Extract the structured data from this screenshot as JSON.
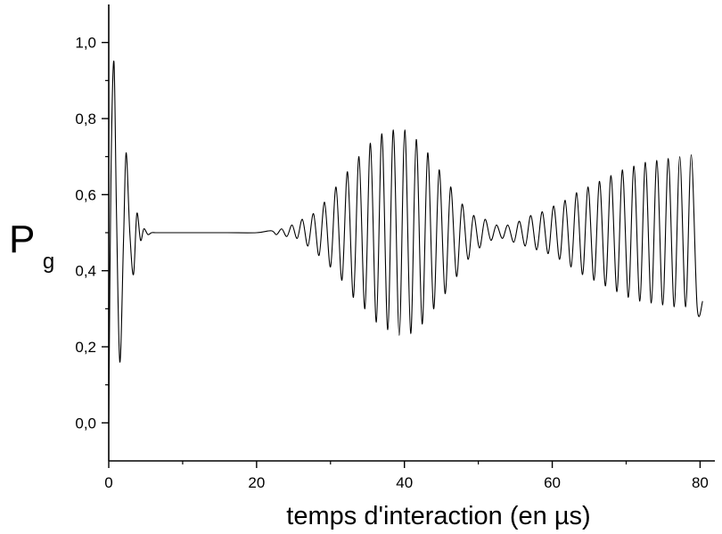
{
  "chart_data": {
    "type": "line",
    "title": "",
    "xlabel": "temps d'interaction (en µs)",
    "ylabel": {
      "main": "P",
      "sub": "g"
    },
    "xlim": [
      0,
      82
    ],
    "ylim": [
      -0.1,
      1.1
    ],
    "x_ticks": [
      0,
      20,
      40,
      60,
      80
    ],
    "x_tick_labels": [
      "0",
      "20",
      "40",
      "60",
      "80"
    ],
    "y_ticks": [
      0.0,
      0.2,
      0.4,
      0.6,
      0.8,
      1.0
    ],
    "y_tick_labels": [
      "0,0",
      "0,2",
      "0,4",
      "0,6",
      "0,8",
      "1,0"
    ],
    "grid": false,
    "legend": "none",
    "line_color": "#000000",
    "series": [
      {
        "x": [
          0,
          0.3,
          0.7,
          1.05,
          1.5,
          2.0,
          2.35,
          2.85,
          3.35,
          3.8,
          4.3,
          4.75,
          5.3,
          5.8,
          6.5,
          8,
          12,
          16,
          20,
          22,
          22.7,
          23.4,
          24.1,
          24.8,
          25.5,
          26.2,
          26.95,
          27.7,
          28.45,
          29.2,
          30.0,
          30.75,
          31.55,
          32.3,
          33.1,
          33.85,
          34.65,
          35.4,
          36.2,
          36.95,
          37.75,
          38.5,
          39.3,
          40.05,
          40.85,
          41.6,
          42.4,
          43.15,
          43.95,
          44.7,
          45.5,
          46.25,
          47.05,
          47.8,
          48.6,
          49.35,
          50.15,
          50.9,
          51.7,
          52.45,
          53.25,
          54.0,
          54.8,
          55.55,
          56.35,
          57.1,
          57.9,
          58.65,
          59.45,
          60.2,
          61.0,
          61.75,
          62.55,
          63.3,
          64.1,
          64.85,
          65.65,
          66.4,
          67.2,
          67.95,
          68.75,
          69.5,
          70.3,
          71.05,
          71.85,
          72.6,
          73.4,
          74.15,
          74.95,
          75.7,
          76.5,
          77.25,
          78.05,
          78.8,
          79.6,
          80.35
        ],
        "y": [
          0.0,
          0.65,
          0.95,
          0.55,
          0.16,
          0.48,
          0.71,
          0.5,
          0.39,
          0.55,
          0.48,
          0.51,
          0.495,
          0.5,
          0.5,
          0.5,
          0.5,
          0.5,
          0.5,
          0.505,
          0.495,
          0.51,
          0.49,
          0.52,
          0.485,
          0.535,
          0.465,
          0.55,
          0.44,
          0.58,
          0.41,
          0.62,
          0.375,
          0.66,
          0.33,
          0.7,
          0.3,
          0.735,
          0.265,
          0.76,
          0.245,
          0.77,
          0.23,
          0.77,
          0.235,
          0.745,
          0.26,
          0.71,
          0.3,
          0.665,
          0.34,
          0.62,
          0.385,
          0.575,
          0.43,
          0.545,
          0.46,
          0.535,
          0.48,
          0.52,
          0.485,
          0.52,
          0.475,
          0.53,
          0.465,
          0.545,
          0.455,
          0.555,
          0.445,
          0.57,
          0.43,
          0.585,
          0.41,
          0.605,
          0.39,
          0.62,
          0.375,
          0.635,
          0.36,
          0.65,
          0.345,
          0.665,
          0.33,
          0.675,
          0.32,
          0.685,
          0.315,
          0.69,
          0.31,
          0.695,
          0.305,
          0.7,
          0.305,
          0.705,
          0.305,
          0.32
        ]
      }
    ]
  }
}
